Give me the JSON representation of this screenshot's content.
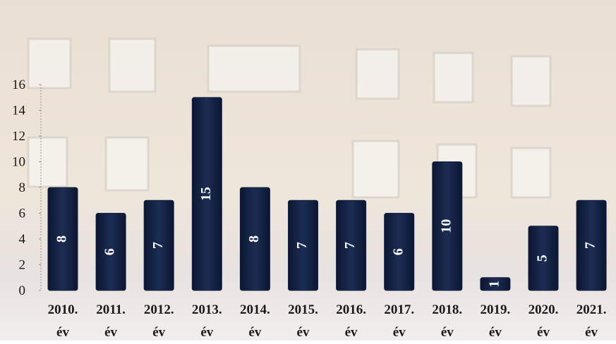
{
  "chart_data": {
    "type": "bar",
    "categories": [
      "2010. év",
      "2011. év",
      "2012. év",
      "2013. év",
      "2014. év",
      "2015. év",
      "2016. év",
      "2017. év",
      "2018. év",
      "2019. év",
      "2020. év",
      "2021. év"
    ],
    "values": [
      8,
      6,
      7,
      15,
      8,
      7,
      7,
      6,
      10,
      1,
      5,
      7
    ],
    "color": "#14213f",
    "ylim": [
      0,
      16
    ],
    "yticks": [
      0,
      2,
      4,
      6,
      8,
      10,
      12,
      14,
      16
    ]
  }
}
